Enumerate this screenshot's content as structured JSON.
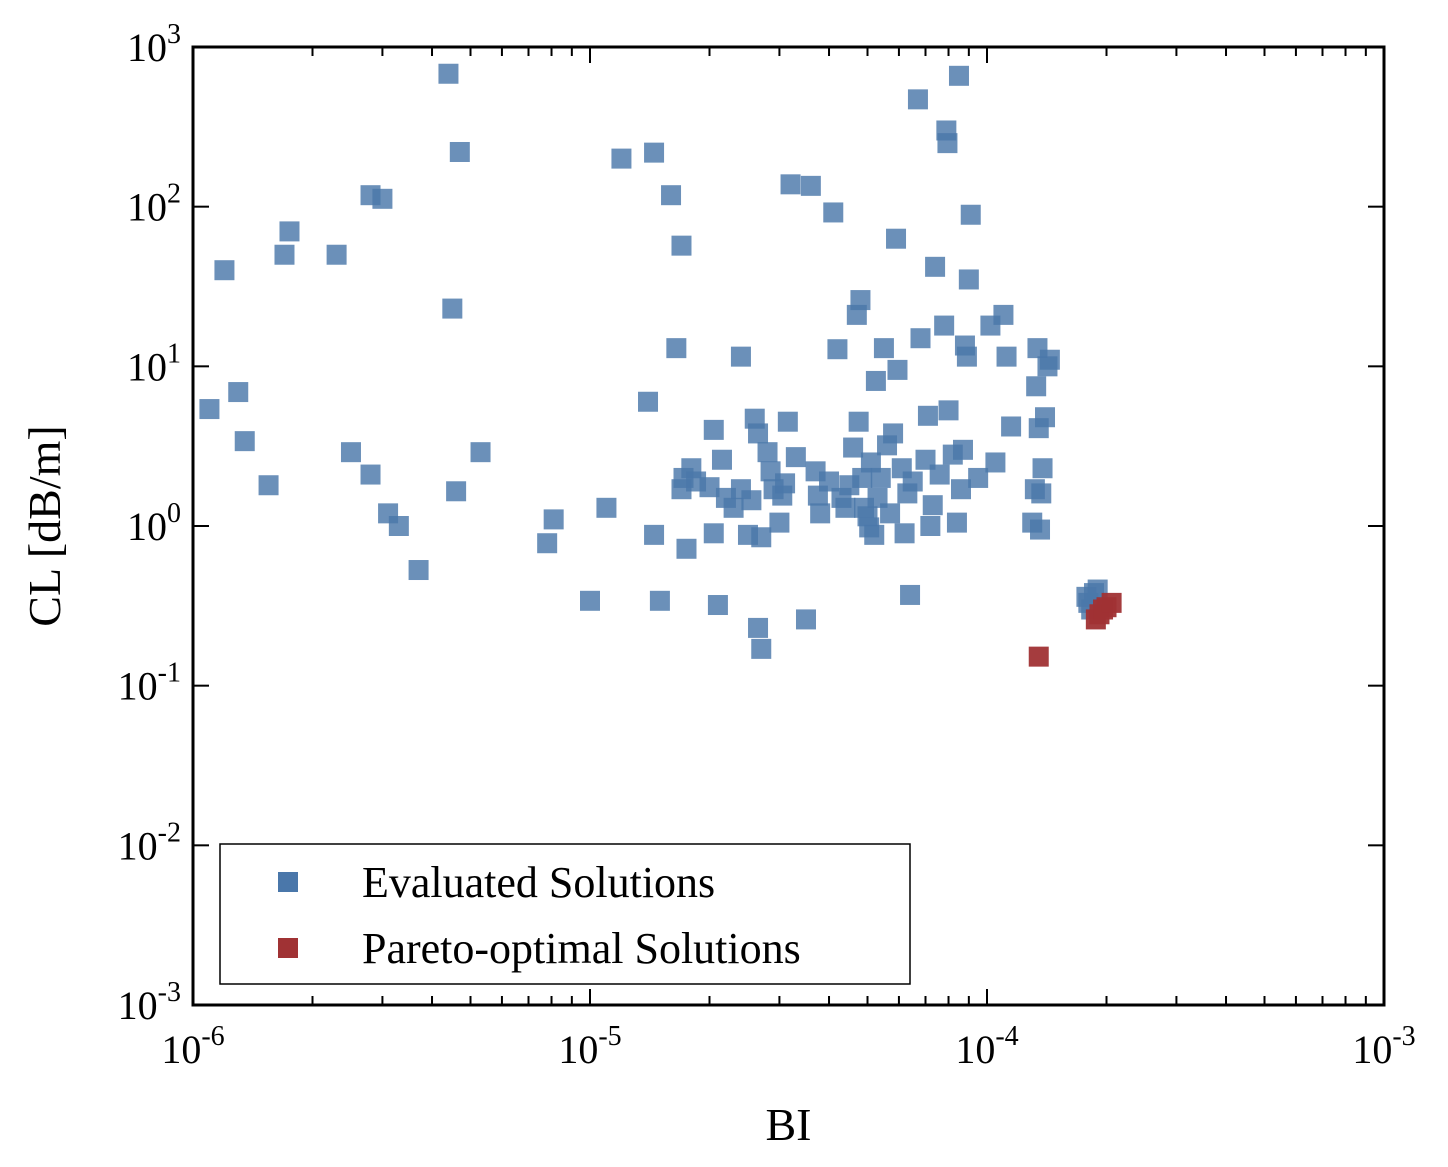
{
  "chart_data": {
    "type": "scatter",
    "title": "",
    "xlabel": "BI",
    "ylabel": "CL [dB/m]",
    "xscale": "log",
    "yscale": "log",
    "xlim": [
      1e-06,
      0.001
    ],
    "ylim": [
      0.001,
      1000.0
    ],
    "grid": false,
    "legend_position": "bottom-left",
    "x_ticks": [
      {
        "value": 1e-06,
        "base": "10",
        "exp": "-6"
      },
      {
        "value": 1e-05,
        "base": "10",
        "exp": "-5"
      },
      {
        "value": 0.0001,
        "base": "10",
        "exp": "-4"
      },
      {
        "value": 0.001,
        "base": "10",
        "exp": "-3"
      }
    ],
    "y_ticks": [
      {
        "value": 0.001,
        "base": "10",
        "exp": "-3"
      },
      {
        "value": 0.01,
        "base": "10",
        "exp": "-2"
      },
      {
        "value": 0.1,
        "base": "10",
        "exp": "-1"
      },
      {
        "value": 1.0,
        "base": "10",
        "exp": "0"
      },
      {
        "value": 10.0,
        "base": "10",
        "exp": "1"
      },
      {
        "value": 100.0,
        "base": "10",
        "exp": "2"
      },
      {
        "value": 1000.0,
        "base": "10",
        "exp": "3"
      }
    ],
    "series": [
      {
        "name": "Evaluated Solutions",
        "color": "#4a77aa",
        "points": [
          [
            1.1e-06,
            5.4
          ],
          [
            1.2e-06,
            40
          ],
          [
            1.3e-06,
            6.9
          ],
          [
            1.35e-06,
            3.4
          ],
          [
            1.55e-06,
            1.8
          ],
          [
            1.7e-06,
            50
          ],
          [
            1.75e-06,
            70
          ],
          [
            2.3e-06,
            50
          ],
          [
            2.5e-06,
            2.9
          ],
          [
            2.8e-06,
            2.1
          ],
          [
            2.8e-06,
            118
          ],
          [
            3e-06,
            112
          ],
          [
            3.1e-06,
            1.2
          ],
          [
            3.3e-06,
            1.0
          ],
          [
            3.7e-06,
            0.53
          ],
          [
            4.4e-06,
            680
          ],
          [
            4.5e-06,
            23
          ],
          [
            4.6e-06,
            1.65
          ],
          [
            4.7e-06,
            220
          ],
          [
            5.3e-06,
            2.9
          ],
          [
            7.8e-06,
            0.78
          ],
          [
            8.1e-06,
            1.1
          ],
          [
            1e-05,
            0.34
          ],
          [
            1.1e-05,
            1.3
          ],
          [
            1.2e-05,
            200
          ],
          [
            1.4e-05,
            6
          ],
          [
            1.45e-05,
            0.88
          ],
          [
            1.5e-05,
            0.34
          ],
          [
            1.45e-05,
            218
          ],
          [
            1.6e-05,
            118
          ],
          [
            1.65e-05,
            13
          ],
          [
            1.7e-05,
            1.7
          ],
          [
            1.72e-05,
            2.0
          ],
          [
            1.75e-05,
            0.72
          ],
          [
            1.7e-05,
            57
          ],
          [
            1.8e-05,
            2.3
          ],
          [
            1.85e-05,
            1.9
          ],
          [
            2e-05,
            1.75
          ],
          [
            2.05e-05,
            0.9
          ],
          [
            2.05e-05,
            4.0
          ],
          [
            2.1e-05,
            0.32
          ],
          [
            2.15e-05,
            2.6
          ],
          [
            2.2e-05,
            1.5
          ],
          [
            2.3e-05,
            1.3
          ],
          [
            2.4e-05,
            1.7
          ],
          [
            2.4e-05,
            11.5
          ],
          [
            2.5e-05,
            0.88
          ],
          [
            2.55e-05,
            1.45
          ],
          [
            2.6e-05,
            4.7
          ],
          [
            2.65e-05,
            0.23
          ],
          [
            2.7e-05,
            0.17
          ],
          [
            2.7e-05,
            0.85
          ],
          [
            2.65e-05,
            3.8
          ],
          [
            2.8e-05,
            2.9
          ],
          [
            2.85e-05,
            2.2
          ],
          [
            2.9e-05,
            1.7
          ],
          [
            3e-05,
            1.05
          ],
          [
            3.05e-05,
            1.55
          ],
          [
            3.1e-05,
            1.85
          ],
          [
            3.15e-05,
            4.5
          ],
          [
            3.2e-05,
            138
          ],
          [
            3.3e-05,
            2.7
          ],
          [
            3.5e-05,
            0.26
          ],
          [
            3.6e-05,
            135
          ],
          [
            3.7e-05,
            2.2
          ],
          [
            3.8e-05,
            1.2
          ],
          [
            3.75e-05,
            1.55
          ],
          [
            4e-05,
            1.9
          ],
          [
            4.1e-05,
            92
          ],
          [
            4.2e-05,
            12.8
          ],
          [
            4.3e-05,
            1.5
          ],
          [
            4.4e-05,
            1.3
          ],
          [
            4.5e-05,
            1.8
          ],
          [
            4.6e-05,
            3.1
          ],
          [
            4.7e-05,
            21
          ],
          [
            4.75e-05,
            4.5
          ],
          [
            4.8e-05,
            26
          ],
          [
            4.85e-05,
            2.0
          ],
          [
            4.9e-05,
            1.3
          ],
          [
            5e-05,
            1.15
          ],
          [
            5.05e-05,
            0.98
          ],
          [
            5.1e-05,
            2.5
          ],
          [
            5.2e-05,
            0.88
          ],
          [
            5.25e-05,
            8.1
          ],
          [
            5.3e-05,
            1.5
          ],
          [
            5.4e-05,
            2.0
          ],
          [
            5.5e-05,
            13
          ],
          [
            5.6e-05,
            3.2
          ],
          [
            5.7e-05,
            1.2
          ],
          [
            5.8e-05,
            3.8
          ],
          [
            5.9e-05,
            63
          ],
          [
            5.95e-05,
            9.5
          ],
          [
            6.1e-05,
            2.3
          ],
          [
            6.2e-05,
            0.9
          ],
          [
            6.3e-05,
            1.6
          ],
          [
            6.4e-05,
            0.37
          ],
          [
            6.5e-05,
            1.9
          ],
          [
            6.7e-05,
            470
          ],
          [
            6.8e-05,
            15
          ],
          [
            7e-05,
            2.6
          ],
          [
            7.1e-05,
            4.9
          ],
          [
            7.2e-05,
            1.0
          ],
          [
            7.3e-05,
            1.35
          ],
          [
            7.4e-05,
            42
          ],
          [
            7.6e-05,
            2.1
          ],
          [
            7.8e-05,
            18
          ],
          [
            7.9e-05,
            300
          ],
          [
            7.95e-05,
            250
          ],
          [
            8e-05,
            5.3
          ],
          [
            8.2e-05,
            2.8
          ],
          [
            8.4e-05,
            1.05
          ],
          [
            8.5e-05,
            660
          ],
          [
            8.6e-05,
            1.7
          ],
          [
            8.7e-05,
            3.0
          ],
          [
            8.8e-05,
            13.5
          ],
          [
            8.9e-05,
            11.5
          ],
          [
            9e-05,
            35
          ],
          [
            9.1e-05,
            89
          ],
          [
            9.5e-05,
            2.0
          ],
          [
            0.000102,
            18
          ],
          [
            0.000105,
            2.5
          ],
          [
            0.00011,
            21
          ],
          [
            0.000112,
            11.5
          ],
          [
            0.000115,
            4.2
          ],
          [
            0.00013,
            1.05
          ],
          [
            0.000132,
            1.7
          ],
          [
            0.000133,
            7.5
          ],
          [
            0.000134,
            13
          ],
          [
            0.000135,
            4.1
          ],
          [
            0.000138,
            2.3
          ],
          [
            0.00014,
            4.8
          ],
          [
            0.000142,
            10
          ],
          [
            0.000144,
            11
          ],
          [
            0.000136,
            0.95
          ],
          [
            0.000137,
            1.6
          ],
          [
            0.000178,
            0.36
          ],
          [
            0.00018,
            0.33
          ],
          [
            0.000183,
            0.3
          ],
          [
            0.000186,
            0.38
          ],
          [
            0.00019,
            0.4
          ]
        ]
      },
      {
        "name": "Pareto-optimal Solutions",
        "color": "#a03234",
        "points": [
          [
            0.000135,
            0.152
          ],
          [
            0.000188,
            0.26
          ],
          [
            0.000192,
            0.28
          ],
          [
            0.000196,
            0.3
          ],
          [
            0.0002,
            0.31
          ],
          [
            0.000206,
            0.33
          ]
        ]
      }
    ]
  }
}
